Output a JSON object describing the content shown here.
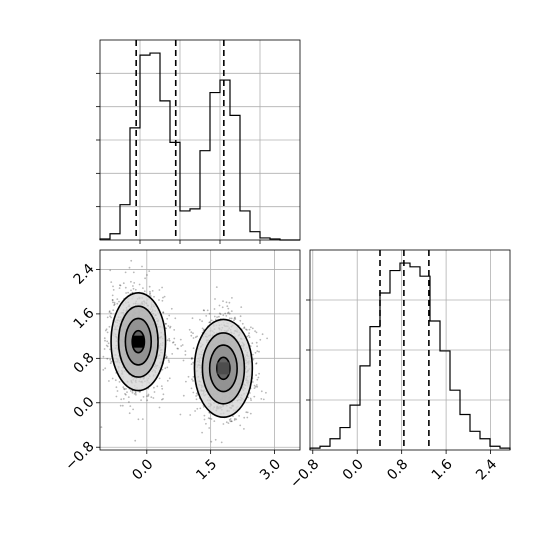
{
  "chart_data": [
    {
      "type": "histogram",
      "panel": "x-marginal",
      "grid": true,
      "xlim": [
        -1.1,
        3.6
      ],
      "bin_edges": [
        -1.1,
        -0.865,
        -0.63,
        -0.395,
        -0.16,
        0.075,
        0.31,
        0.545,
        0.78,
        1.015,
        1.25,
        1.485,
        1.72,
        1.955,
        2.19,
        2.425,
        2.66,
        2.895,
        3.13,
        3.365,
        3.6
      ],
      "counts": [
        0.005,
        0.03,
        0.17,
        0.54,
        0.89,
        0.9,
        0.67,
        0.47,
        0.14,
        0.15,
        0.43,
        0.71,
        0.77,
        0.6,
        0.14,
        0.04,
        0.01,
        0.005,
        0,
        0
      ],
      "quantiles": [
        -0.25,
        0.68,
        1.81
      ],
      "ytick_count": 5,
      "xtick_labels": []
    },
    {
      "type": "heatmap",
      "panel": "2d-density",
      "grid": true,
      "xlim": [
        -1.1,
        3.6
      ],
      "ylim": [
        -0.85,
        2.75
      ],
      "clusters": [
        {
          "center": [
            -0.2,
            1.1
          ],
          "sd": [
            0.32,
            0.44
          ]
        },
        {
          "center": [
            1.8,
            0.62
          ],
          "sd": [
            0.34,
            0.44
          ]
        }
      ],
      "contour_levels": 4,
      "xticks": [
        0.0,
        1.5,
        3.0
      ],
      "xtick_labels": [
        "0.0",
        "1.5",
        "3.0"
      ],
      "yticks": [
        -0.8,
        0.0,
        0.8,
        1.6,
        2.4
      ],
      "ytick_labels": [
        "−0.8",
        "0.0",
        "0.8",
        "1.6",
        "2.4"
      ]
    },
    {
      "type": "histogram",
      "panel": "y-marginal",
      "grid": true,
      "xlim": [
        -0.85,
        2.75
      ],
      "bin_edges": [
        -0.85,
        -0.67,
        -0.49,
        -0.31,
        -0.13,
        0.05,
        0.23,
        0.41,
        0.59,
        0.77,
        0.95,
        1.13,
        1.31,
        1.49,
        1.67,
        1.85,
        2.03,
        2.21,
        2.39,
        2.57,
        2.75
      ],
      "counts": [
        0.01,
        0.02,
        0.06,
        0.12,
        0.24,
        0.45,
        0.66,
        0.84,
        0.96,
        1.0,
        0.98,
        0.93,
        0.69,
        0.53,
        0.32,
        0.19,
        0.1,
        0.06,
        0.02,
        0.01
      ],
      "quantiles": [
        0.41,
        0.84,
        1.29
      ],
      "ytick_count": 3,
      "xticks": [
        -0.8,
        0.0,
        0.8,
        1.6,
        2.4
      ],
      "xtick_labels": [
        "−0.8",
        "0.0",
        "0.8",
        "1.6",
        "2.4"
      ]
    }
  ]
}
